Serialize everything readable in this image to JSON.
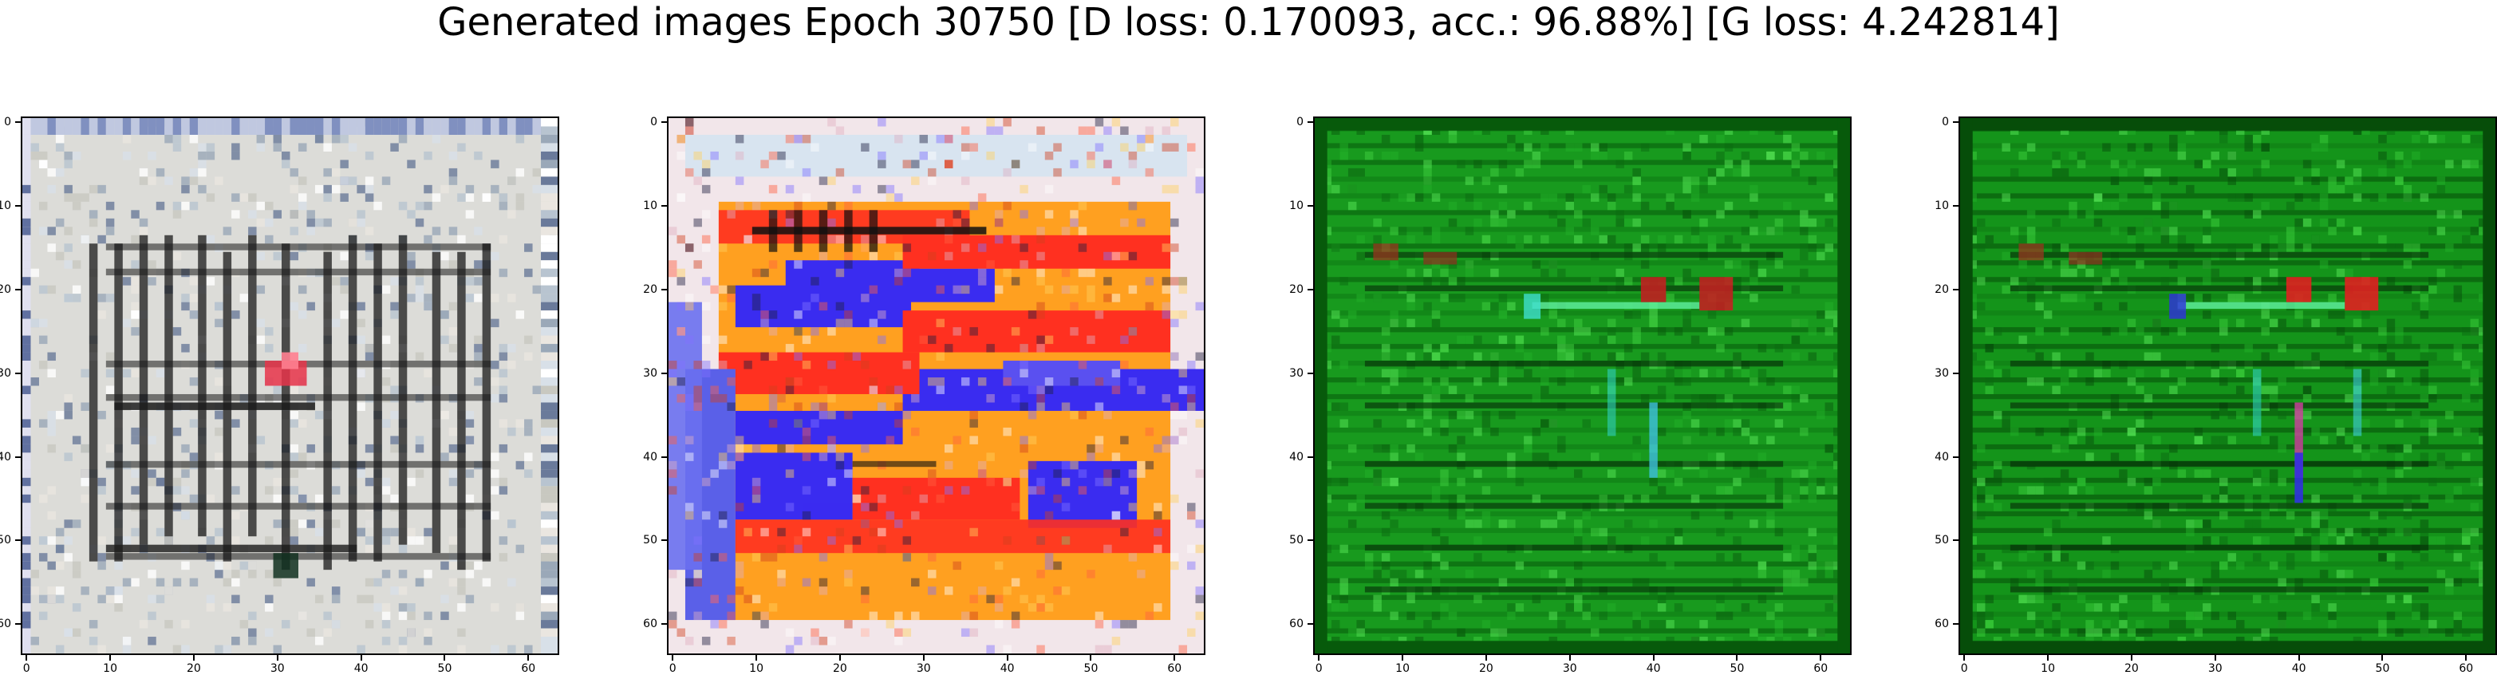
{
  "figure": {
    "title": "Generated images Epoch 30750 [D loss: 0.170093, acc.: 96.88%] [G loss: 4.242814]"
  },
  "axis": {
    "ticks": [
      0,
      10,
      20,
      30,
      40,
      50,
      60
    ],
    "extent": [
      0,
      64
    ],
    "inverted_y": true
  },
  "panels": [
    {
      "name": "generated-image-1",
      "palette": "gray-white",
      "colors": {
        "base": "#dcdcd8",
        "stroke": "#1a1a1a",
        "accent": "#e8344a"
      }
    },
    {
      "name": "generated-image-2",
      "palette": "red-orange-blue",
      "colors": {
        "base": "#f09060",
        "band1": "#3a2cf0",
        "band2": "#ff3020",
        "band3": "#ffa020",
        "light": "#f2e6ea"
      }
    },
    {
      "name": "generated-image-3",
      "palette": "green",
      "colors": {
        "base": "#189a1e",
        "dark": "#075a0b",
        "light": "#40d040",
        "accent": "#c02020"
      }
    },
    {
      "name": "generated-image-4",
      "palette": "green",
      "colors": {
        "base": "#14941a",
        "dark": "#064d09",
        "light": "#3cd03c",
        "accent": "#e02020",
        "blue": "#3030e0"
      }
    }
  ]
}
